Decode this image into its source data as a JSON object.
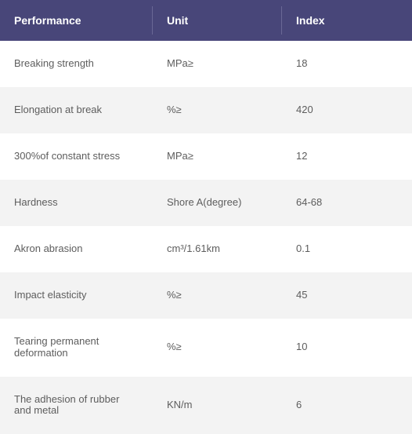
{
  "table": {
    "header_bg": "#484679",
    "header_fg": "#ffffff",
    "row_bg_even": "#ffffff",
    "row_bg_odd": "#f3f3f3",
    "cell_fg": "#5d5d5d",
    "columns": [
      "Performance",
      "Unit",
      "Index"
    ],
    "rows": [
      [
        "Breaking strength",
        "MPa≥",
        "18"
      ],
      [
        "Elongation at break",
        "%≥",
        "420"
      ],
      [
        "300%of constant stress",
        "MPa≥",
        "12"
      ],
      [
        "Hardness",
        "Shore A(degree)",
        "64-68"
      ],
      [
        "Akron abrasion",
        "cm³/1.61km",
        "0.1"
      ],
      [
        "Impact elasticity",
        "%≥",
        "45"
      ],
      [
        "Tearing permanent deformation",
        "%≥",
        "10"
      ],
      [
        "The adhesion of rubber and metal",
        "KN/m",
        "6"
      ]
    ]
  }
}
